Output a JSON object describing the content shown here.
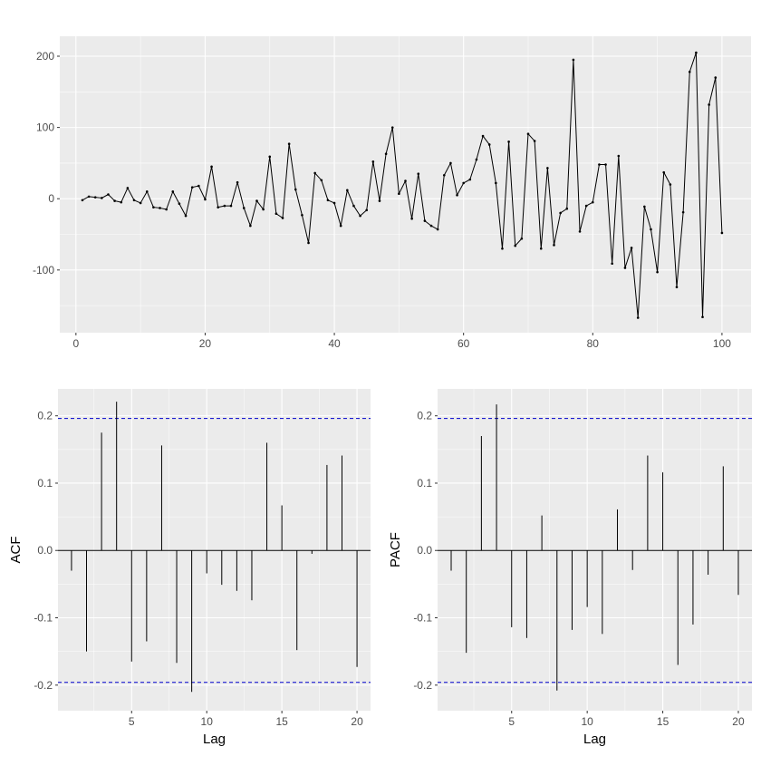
{
  "colors": {
    "panel_bg": "#ebebeb",
    "grid_major": "#ffffff",
    "line": "#000000",
    "ci_line": "#0000cc",
    "tick": "#333333",
    "tick_text": "#4d4d4d"
  },
  "chart_data": [
    {
      "type": "line",
      "title": "",
      "xlabel": "",
      "ylabel": "",
      "xlim": [
        -2.5,
        104.5
      ],
      "ylim": [
        -188,
        228
      ],
      "x_ticks": [
        0,
        20,
        40,
        60,
        80,
        100
      ],
      "y_ticks": [
        -100,
        0,
        100,
        200
      ],
      "x_tick_labels": [
        "0",
        "20",
        "40",
        "60",
        "80",
        "100"
      ],
      "y_tick_labels": [
        "-100",
        "0",
        "100",
        "200"
      ],
      "grid": true,
      "markers": true,
      "series": [
        {
          "x": [
            1,
            2,
            3,
            4,
            5,
            6,
            7,
            8,
            9,
            10,
            11,
            12,
            13,
            14,
            15,
            16,
            17,
            18,
            19,
            20,
            21,
            22,
            23,
            24,
            25,
            26,
            27,
            28,
            29,
            30,
            31,
            32,
            33,
            34,
            35,
            36,
            37,
            38,
            39,
            40,
            41,
            42,
            43,
            44,
            45,
            46,
            47,
            48,
            49,
            50,
            51,
            52,
            53,
            54,
            55,
            56,
            57,
            58,
            59,
            60,
            61,
            62,
            63,
            64,
            65,
            66,
            67,
            68,
            69,
            70,
            71,
            72,
            73,
            74,
            75,
            76,
            77,
            78,
            79,
            80,
            81,
            82,
            83,
            84,
            85,
            86,
            87,
            88,
            89,
            90,
            91,
            92,
            93,
            94,
            95,
            96,
            97,
            98,
            99,
            100
          ],
          "values": [
            -2,
            3,
            2,
            1,
            6,
            -3,
            -5,
            15,
            -2,
            -6,
            10,
            -12,
            -13,
            -15,
            10,
            -7,
            -24,
            16,
            18,
            -1,
            45,
            -12,
            -10,
            -10,
            23,
            -13,
            -38,
            -3,
            -15,
            59,
            -21,
            -27,
            77,
            13,
            -23,
            -62,
            36,
            26,
            -2,
            -6,
            -38,
            12,
            -10,
            -24,
            -16,
            52,
            -3,
            63,
            100,
            7,
            25,
            -28,
            35,
            -31,
            -38,
            -43,
            33,
            50,
            5,
            22,
            27,
            55,
            88,
            76,
            22,
            -70,
            80,
            -66,
            -56,
            91,
            81,
            -70,
            43,
            -65,
            -20,
            -14,
            195,
            -46,
            -10,
            -5,
            48,
            48,
            -91,
            60,
            -97,
            -69,
            -167,
            -11,
            -43,
            -103,
            37,
            20,
            -124,
            -19,
            178,
            205,
            -166,
            132,
            170,
            -48
          ]
        }
      ]
    },
    {
      "type": "bar",
      "title": "",
      "xlabel": "Lag",
      "ylabel": "ACF",
      "xlim": [
        0.1,
        20.9
      ],
      "ylim": [
        -0.238,
        0.24
      ],
      "x_ticks": [
        5,
        10,
        15,
        20
      ],
      "y_ticks": [
        -0.2,
        -0.1,
        0.0,
        0.1,
        0.2
      ],
      "x_tick_labels": [
        "5",
        "10",
        "15",
        "20"
      ],
      "y_tick_labels": [
        "-0.2",
        "-0.1",
        "0.0",
        "0.1",
        "0.2"
      ],
      "ci": 0.196,
      "grid": true,
      "categories": [
        1,
        2,
        3,
        4,
        5,
        6,
        7,
        8,
        9,
        10,
        11,
        12,
        13,
        14,
        15,
        16,
        17,
        18,
        19,
        20
      ],
      "values": [
        -0.03,
        -0.15,
        0.175,
        0.221,
        -0.165,
        -0.135,
        0.156,
        -0.167,
        -0.21,
        -0.034,
        -0.051,
        -0.06,
        -0.074,
        0.16,
        0.067,
        -0.148,
        -0.005,
        0.127,
        0.141,
        -0.173
      ]
    },
    {
      "type": "bar",
      "title": "",
      "xlabel": "Lag",
      "ylabel": "PACF",
      "xlim": [
        0.1,
        20.9
      ],
      "ylim": [
        -0.238,
        0.24
      ],
      "x_ticks": [
        5,
        10,
        15,
        20
      ],
      "y_ticks": [
        -0.2,
        -0.1,
        0.0,
        0.1,
        0.2
      ],
      "x_tick_labels": [
        "5",
        "10",
        "15",
        "20"
      ],
      "y_tick_labels": [
        "-0.2",
        "-0.1",
        "0.0",
        "0.1",
        "0.2"
      ],
      "ci": 0.196,
      "grid": true,
      "categories": [
        1,
        2,
        3,
        4,
        5,
        6,
        7,
        8,
        9,
        10,
        11,
        12,
        13,
        14,
        15,
        16,
        17,
        18,
        19,
        20
      ],
      "values": [
        -0.03,
        -0.152,
        0.17,
        0.217,
        -0.114,
        -0.13,
        0.052,
        -0.208,
        -0.118,
        -0.084,
        -0.124,
        0.061,
        -0.029,
        0.141,
        0.116,
        -0.17,
        -0.11,
        -0.036,
        0.125,
        -0.066
      ]
    }
  ]
}
